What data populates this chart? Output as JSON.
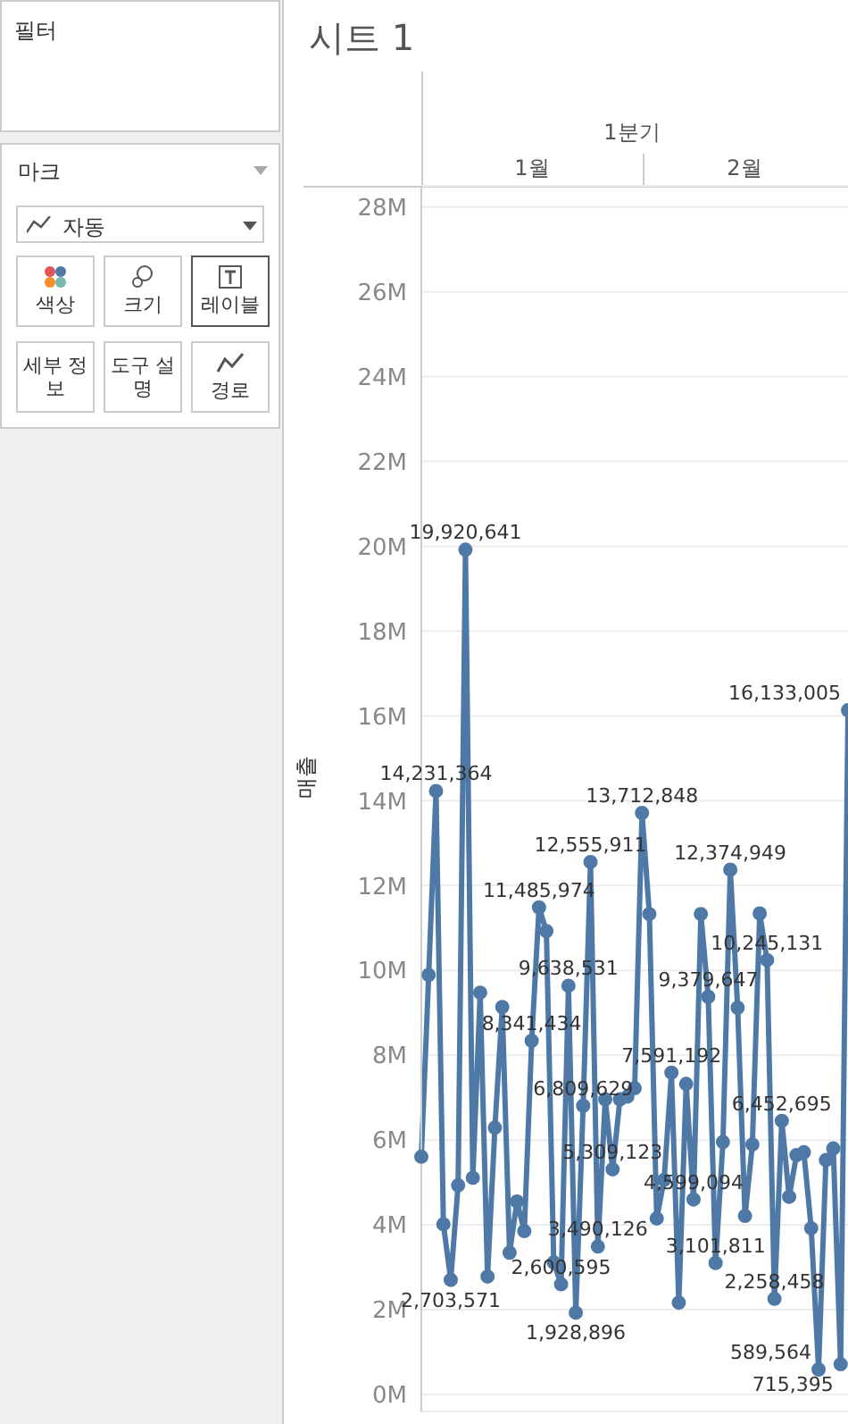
{
  "chart_data": {
    "type": "line",
    "title": "시트 1",
    "ylabel": "매출",
    "categories": [
      null,
      null,
      null,
      null,
      null,
      null,
      null,
      null,
      null,
      null,
      null,
      null,
      null,
      null,
      null,
      null,
      null,
      null,
      null,
      null,
      null,
      null,
      null,
      null,
      null,
      null,
      null,
      null,
      null,
      null,
      null,
      null,
      null,
      null,
      null,
      null,
      null,
      null,
      null,
      null,
      null,
      null,
      null,
      null,
      null,
      null,
      null,
      null,
      null,
      null,
      null,
      null,
      null,
      null,
      null,
      null,
      null,
      null,
      null
    ],
    "series": [
      {
        "color": "#4e79a7",
        "values": [
          5607723,
          9893424,
          14231364,
          4014826,
          2703571,
          4932103,
          19920641,
          5110822,
          9475630,
          2781635,
          6291070,
          9136213,
          3344120,
          4551971,
          3852939,
          8341434,
          11485974,
          10926630,
          3115120,
          2600595,
          9638531,
          1928896,
          6809629,
          12555911,
          3490126,
          6959881,
          5309123,
          6961027,
          7022512,
          7223986,
          13712848,
          11328350,
          4151050,
          5059774,
          7591192,
          2166550,
          7322787,
          4599094,
          11328857,
          9379647,
          3101811,
          5954591,
          12374949,
          9120911,
          4211159,
          5895228,
          11342714,
          10245131,
          2258458,
          6452695,
          4662324,
          5645673,
          5712580,
          3920144,
          589564,
          5528120,
          5801332,
          715395,
          16133005
        ]
      }
    ],
    "ylim": [
      -400000,
      28500000
    ],
    "yticks": [
      {
        "value": 0,
        "label": "0M"
      },
      {
        "value": 2000000,
        "label": "2M"
      },
      {
        "value": 4000000,
        "label": "4M"
      },
      {
        "value": 6000000,
        "label": "6M"
      },
      {
        "value": 8000000,
        "label": "8M"
      },
      {
        "value": 10000000,
        "label": "10M"
      },
      {
        "value": 12000000,
        "label": "12M"
      },
      {
        "value": 14000000,
        "label": "14M"
      },
      {
        "value": 16000000,
        "label": "16M"
      },
      {
        "value": 18000000,
        "label": "18M"
      },
      {
        "value": 20000000,
        "label": "20M"
      },
      {
        "value": 22000000,
        "label": "22M"
      },
      {
        "value": 24000000,
        "label": "24M"
      },
      {
        "value": 26000000,
        "label": "26M"
      },
      {
        "value": 28000000,
        "label": "28M"
      }
    ],
    "value_labels": [
      null,
      null,
      "14,231,364",
      null,
      "2,703,571",
      null,
      "19,920,641",
      null,
      null,
      null,
      null,
      null,
      null,
      null,
      null,
      "8,341,434",
      "11,485,974",
      null,
      null,
      "2,600,595",
      "9,638,531",
      "1,928,896",
      "6,809,629",
      "12,555,911",
      "3,490,126",
      null,
      "5,309,123",
      null,
      null,
      null,
      "13,712,848",
      null,
      null,
      null,
      "7,591,192",
      null,
      null,
      "4,599,094",
      null,
      "9,379,647",
      "3,101,811",
      null,
      "12,374,949",
      null,
      null,
      null,
      null,
      "10,245,131",
      "2,258,458",
      "6,452,695",
      null,
      null,
      null,
      null,
      "589,564",
      null,
      null,
      "715,395",
      "16,133,005"
    ],
    "grid": "y",
    "legend": false,
    "marker": "circle",
    "line_style": "solid",
    "tick_labels": "y",
    "annotations": [
      "1분기",
      "1월",
      "2월",
      "필터",
      "마크",
      "자동",
      "색상",
      "크기",
      "레이블",
      "세부 정보",
      "도구 설명",
      "경로"
    ]
  }
}
